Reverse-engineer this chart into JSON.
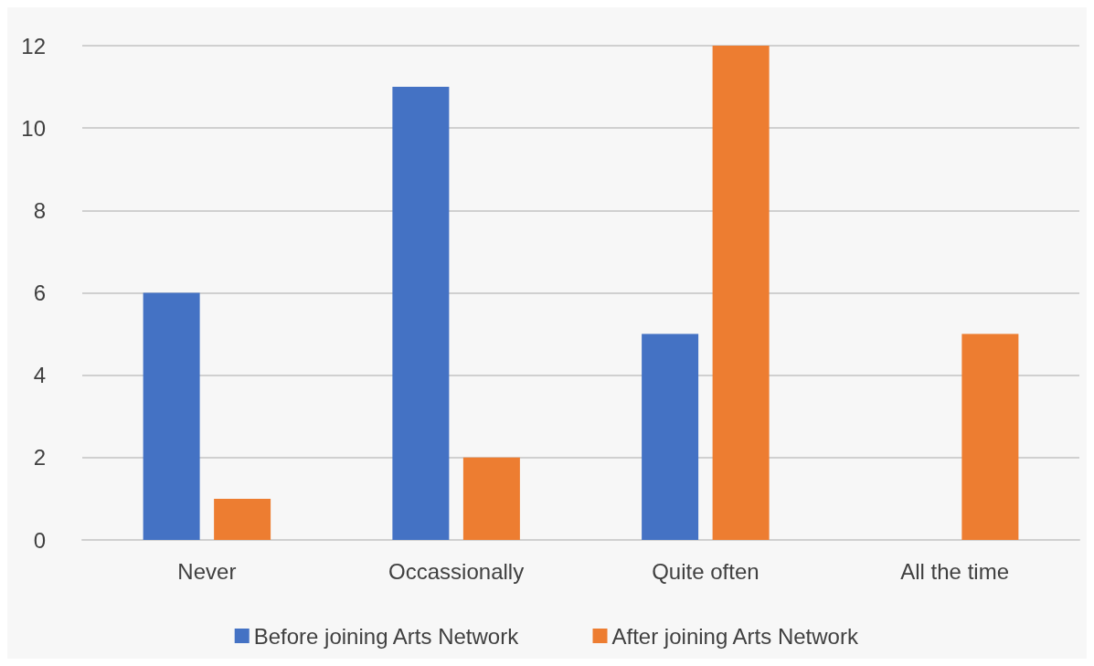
{
  "chart_data": {
    "type": "bar",
    "categories": [
      "Never",
      "Occassionally",
      "Quite often",
      "All the time"
    ],
    "series": [
      {
        "name": "Before joining Arts Network",
        "color": "#4472c4",
        "values": [
          6,
          11,
          5,
          0
        ]
      },
      {
        "name": "After joining Arts Network",
        "color": "#ed7d31",
        "values": [
          1,
          2,
          12,
          5
        ]
      }
    ],
    "ylim": [
      0,
      12
    ],
    "yticks": [
      0,
      2,
      4,
      6,
      8,
      10,
      12
    ],
    "grid": "y",
    "legend": "bottom"
  }
}
